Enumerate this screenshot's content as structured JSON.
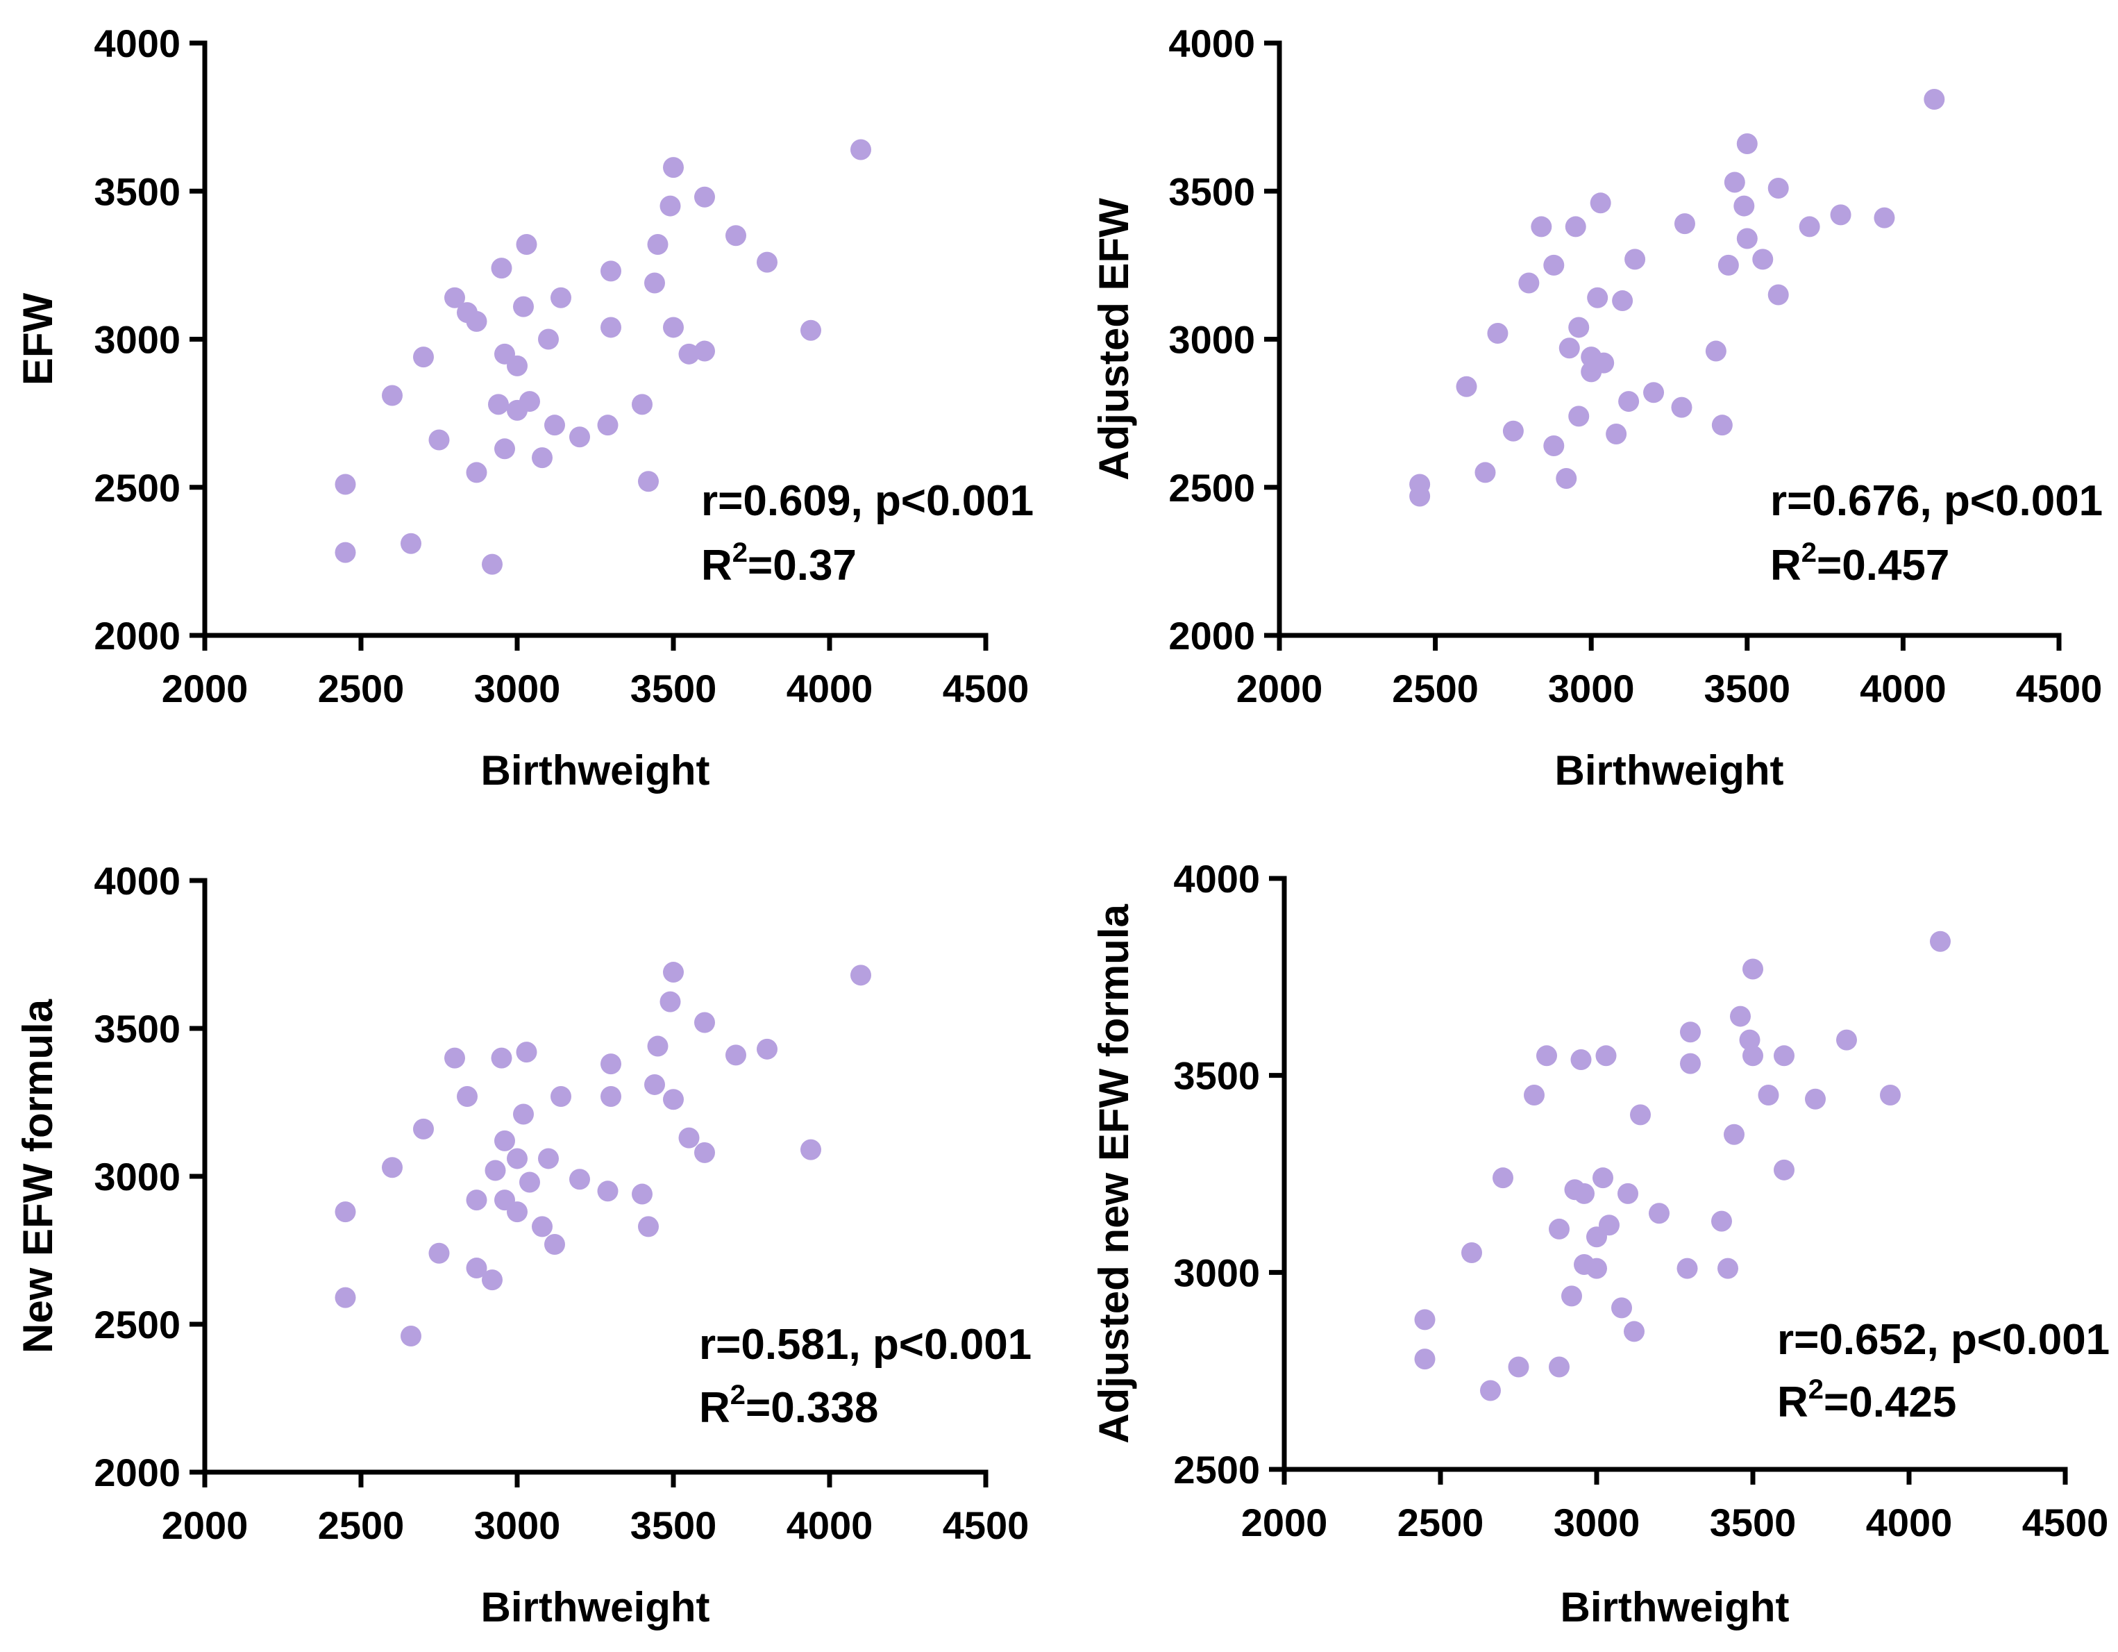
{
  "colors": {
    "point": "#B6A0DF",
    "axis": "#000000",
    "background": "#FFFFFF"
  },
  "chart_data": [
    {
      "type": "scatter",
      "xlabel": "Birthweight",
      "ylabel": "EFW",
      "xlim": [
        2000,
        4500
      ],
      "ylim": [
        2000,
        4000
      ],
      "xticks": [
        "2000",
        "2500",
        "3000",
        "3500",
        "4000",
        "4500"
      ],
      "yticks": [
        "2000",
        "2500",
        "3000",
        "3500",
        "4000"
      ],
      "stat_r": "r=0.609, p<0.001",
      "stat_r2_prefix": "R",
      "stat_r2_sup": "2",
      "stat_r2_value": "=0.37",
      "grid": false,
      "points": [
        [
          2450,
          2510
        ],
        [
          2450,
          2280
        ],
        [
          2600,
          2810
        ],
        [
          2660,
          2310
        ],
        [
          2700,
          2940
        ],
        [
          2750,
          2660
        ],
        [
          2800,
          3140
        ],
        [
          2840,
          3090
        ],
        [
          2870,
          3060
        ],
        [
          2870,
          2550
        ],
        [
          2920,
          2240
        ],
        [
          2940,
          2780
        ],
        [
          2950,
          3240
        ],
        [
          2960,
          2950
        ],
        [
          2960,
          2630
        ],
        [
          3000,
          2910
        ],
        [
          3000,
          2760
        ],
        [
          3020,
          3110
        ],
        [
          3030,
          3320
        ],
        [
          3040,
          2790
        ],
        [
          3080,
          2600
        ],
        [
          3100,
          3000
        ],
        [
          3120,
          2710
        ],
        [
          3140,
          3140
        ],
        [
          3200,
          2670
        ],
        [
          3290,
          2710
        ],
        [
          3300,
          3230
        ],
        [
          3300,
          3040
        ],
        [
          3400,
          2780
        ],
        [
          3420,
          2520
        ],
        [
          3440,
          3190
        ],
        [
          3450,
          3320
        ],
        [
          3490,
          3450
        ],
        [
          3500,
          3580
        ],
        [
          3500,
          3040
        ],
        [
          3550,
          2950
        ],
        [
          3600,
          3480
        ],
        [
          3600,
          2960
        ],
        [
          3700,
          3350
        ],
        [
          3800,
          3260
        ],
        [
          3940,
          3030
        ],
        [
          4100,
          3640
        ]
      ]
    },
    {
      "type": "scatter",
      "xlabel": "Birthweight",
      "ylabel": "Adjusted EFW",
      "xlim": [
        2000,
        4500
      ],
      "ylim": [
        2000,
        4000
      ],
      "xticks": [
        "2000",
        "2500",
        "3000",
        "3500",
        "4000",
        "4500"
      ],
      "yticks": [
        "2000",
        "2500",
        "3000",
        "3500",
        "4000"
      ],
      "stat_r": "r=0.676, p<0.001",
      "stat_r2_prefix": "R",
      "stat_r2_sup": "2",
      "stat_r2_value": "=0.457",
      "grid": false,
      "points": [
        [
          2450,
          2510
        ],
        [
          2450,
          2470
        ],
        [
          2600,
          2840
        ],
        [
          2660,
          2550
        ],
        [
          2700,
          3020
        ],
        [
          2750,
          2690
        ],
        [
          2800,
          3190
        ],
        [
          2840,
          3380
        ],
        [
          2880,
          3250
        ],
        [
          2880,
          2640
        ],
        [
          2920,
          2530
        ],
        [
          2930,
          2970
        ],
        [
          2950,
          3380
        ],
        [
          2960,
          3040
        ],
        [
          2960,
          2740
        ],
        [
          3000,
          2940
        ],
        [
          3000,
          2890
        ],
        [
          3020,
          3140
        ],
        [
          3030,
          3460
        ],
        [
          3040,
          2920
        ],
        [
          3080,
          2680
        ],
        [
          3100,
          3130
        ],
        [
          3120,
          2790
        ],
        [
          3140,
          3270
        ],
        [
          3200,
          2820
        ],
        [
          3290,
          2770
        ],
        [
          3300,
          3390
        ],
        [
          3400,
          2960
        ],
        [
          3420,
          2710
        ],
        [
          3440,
          3250
        ],
        [
          3460,
          3530
        ],
        [
          3490,
          3450
        ],
        [
          3500,
          3660
        ],
        [
          3500,
          3340
        ],
        [
          3550,
          3270
        ],
        [
          3600,
          3510
        ],
        [
          3600,
          3150
        ],
        [
          3700,
          3380
        ],
        [
          3800,
          3420
        ],
        [
          3940,
          3410
        ],
        [
          4100,
          3810
        ]
      ]
    },
    {
      "type": "scatter",
      "xlabel": "Birthweight",
      "ylabel": "New EFW formula",
      "xlim": [
        2000,
        4500
      ],
      "ylim": [
        2000,
        4000
      ],
      "xticks": [
        "2000",
        "2500",
        "3000",
        "3500",
        "4000",
        "4500"
      ],
      "yticks": [
        "2000",
        "2500",
        "3000",
        "3500",
        "4000"
      ],
      "stat_r": "r=0.581, p<0.001",
      "stat_r2_prefix": "R",
      "stat_r2_sup": "2",
      "stat_r2_value": "=0.338",
      "grid": false,
      "points": [
        [
          2450,
          2880
        ],
        [
          2450,
          2590
        ],
        [
          2600,
          3030
        ],
        [
          2660,
          2460
        ],
        [
          2700,
          3160
        ],
        [
          2750,
          2740
        ],
        [
          2800,
          3400
        ],
        [
          2840,
          3270
        ],
        [
          2870,
          2920
        ],
        [
          2870,
          2690
        ],
        [
          2920,
          2650
        ],
        [
          2930,
          3020
        ],
        [
          2950,
          3400
        ],
        [
          2960,
          3120
        ],
        [
          2960,
          2920
        ],
        [
          3000,
          3060
        ],
        [
          3000,
          2880
        ],
        [
          3020,
          3210
        ],
        [
          3030,
          3420
        ],
        [
          3040,
          2980
        ],
        [
          3080,
          2830
        ],
        [
          3100,
          3060
        ],
        [
          3120,
          2770
        ],
        [
          3140,
          3270
        ],
        [
          3200,
          2990
        ],
        [
          3290,
          2950
        ],
        [
          3300,
          3380
        ],
        [
          3300,
          3270
        ],
        [
          3400,
          2940
        ],
        [
          3420,
          2830
        ],
        [
          3440,
          3310
        ],
        [
          3450,
          3440
        ],
        [
          3490,
          3590
        ],
        [
          3500,
          3690
        ],
        [
          3500,
          3260
        ],
        [
          3550,
          3130
        ],
        [
          3600,
          3520
        ],
        [
          3600,
          3080
        ],
        [
          3700,
          3410
        ],
        [
          3800,
          3430
        ],
        [
          3940,
          3090
        ],
        [
          4100,
          3680
        ]
      ]
    },
    {
      "type": "scatter",
      "xlabel": "Birthweight",
      "ylabel": "Adjusted new EFW formula",
      "xlim": [
        2000,
        4500
      ],
      "ylim": [
        2500,
        4000
      ],
      "xticks": [
        "2000",
        "2500",
        "3000",
        "3500",
        "4000",
        "4500"
      ],
      "yticks": [
        "2500",
        "3000",
        "3500",
        "4000"
      ],
      "stat_r": "r=0.652, p<0.001",
      "stat_r2_prefix": "R",
      "stat_r2_sup": "2",
      "stat_r2_value": "=0.425",
      "grid": false,
      "points": [
        [
          2450,
          2880
        ],
        [
          2450,
          2780
        ],
        [
          2600,
          3050
        ],
        [
          2660,
          2700
        ],
        [
          2700,
          3240
        ],
        [
          2750,
          2760
        ],
        [
          2800,
          3450
        ],
        [
          2840,
          3550
        ],
        [
          2880,
          3110
        ],
        [
          2880,
          2760
        ],
        [
          2920,
          2940
        ],
        [
          2930,
          3210
        ],
        [
          2950,
          3540
        ],
        [
          2960,
          3200
        ],
        [
          2960,
          3020
        ],
        [
          3000,
          3090
        ],
        [
          3000,
          3010
        ],
        [
          3020,
          3240
        ],
        [
          3030,
          3550
        ],
        [
          3040,
          3120
        ],
        [
          3080,
          2910
        ],
        [
          3100,
          3200
        ],
        [
          3120,
          2850
        ],
        [
          3140,
          3400
        ],
        [
          3200,
          3150
        ],
        [
          3290,
          3010
        ],
        [
          3300,
          3610
        ],
        [
          3300,
          3530
        ],
        [
          3400,
          3130
        ],
        [
          3420,
          3010
        ],
        [
          3440,
          3350
        ],
        [
          3460,
          3650
        ],
        [
          3490,
          3590
        ],
        [
          3500,
          3770
        ],
        [
          3500,
          3550
        ],
        [
          3550,
          3450
        ],
        [
          3600,
          3550
        ],
        [
          3600,
          3260
        ],
        [
          3700,
          3440
        ],
        [
          3800,
          3590
        ],
        [
          3940,
          3450
        ],
        [
          4100,
          3840
        ]
      ]
    }
  ]
}
